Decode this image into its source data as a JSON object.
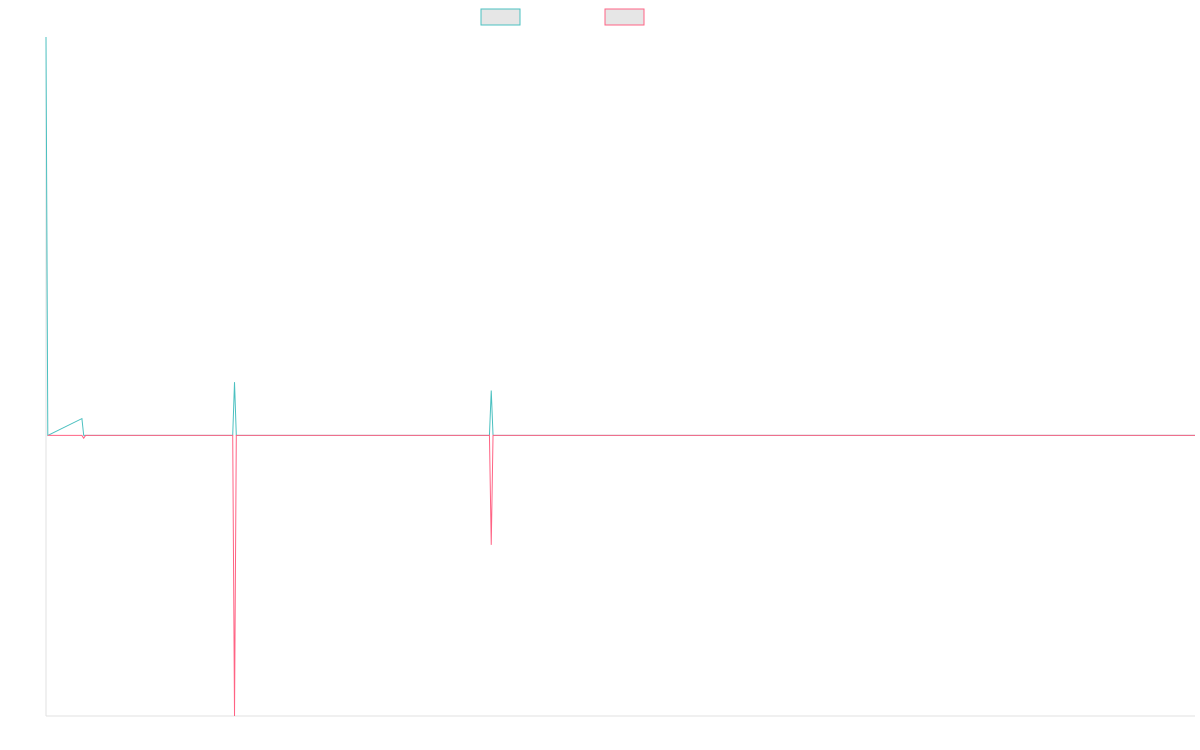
{
  "chart_data": {
    "type": "line",
    "title": "",
    "xlabel": "",
    "ylabel": "",
    "legend_position": "top-center",
    "grid": false,
    "x": [
      0,
      1,
      2,
      3,
      4,
      5,
      6,
      7,
      8,
      9,
      10,
      11,
      12,
      13,
      14,
      15,
      16,
      17,
      18,
      19,
      20,
      21,
      22,
      23,
      24,
      25,
      26,
      27,
      28,
      29,
      30,
      31,
      32
    ],
    "ylim": [
      -100,
      142
    ],
    "series": [
      {
        "color": "#4bc0c0",
        "fill": "#e6e6e6",
        "values": [
          142,
          0,
          0,
          0,
          0,
          0,
          0,
          0,
          0,
          0,
          0,
          0,
          0,
          0,
          0,
          0,
          0,
          0,
          0,
          0,
          0,
          0,
          0,
          0,
          0,
          0,
          0,
          0,
          0,
          0,
          0,
          0,
          0
        ],
        "points": [
          [
            0,
            142
          ],
          [
            0.05,
            0
          ],
          [
            1,
            6
          ],
          [
            1.05,
            0
          ],
          [
            5.2,
            0
          ],
          [
            5.25,
            19
          ],
          [
            5.3,
            0
          ],
          [
            12.35,
            0
          ],
          [
            12.4,
            16
          ],
          [
            12.45,
            0
          ],
          [
            32,
            0
          ]
        ]
      },
      {
        "color": "#ff6384",
        "fill": "#e6e6e6",
        "points": [
          [
            0.05,
            0
          ],
          [
            1,
            0
          ],
          [
            1.05,
            -1
          ],
          [
            1.1,
            0
          ],
          [
            5.2,
            0
          ],
          [
            5.25,
            -100
          ],
          [
            5.3,
            0
          ],
          [
            12.35,
            0
          ],
          [
            12.4,
            -39
          ],
          [
            12.45,
            0
          ],
          [
            32,
            0
          ]
        ]
      }
    ]
  }
}
